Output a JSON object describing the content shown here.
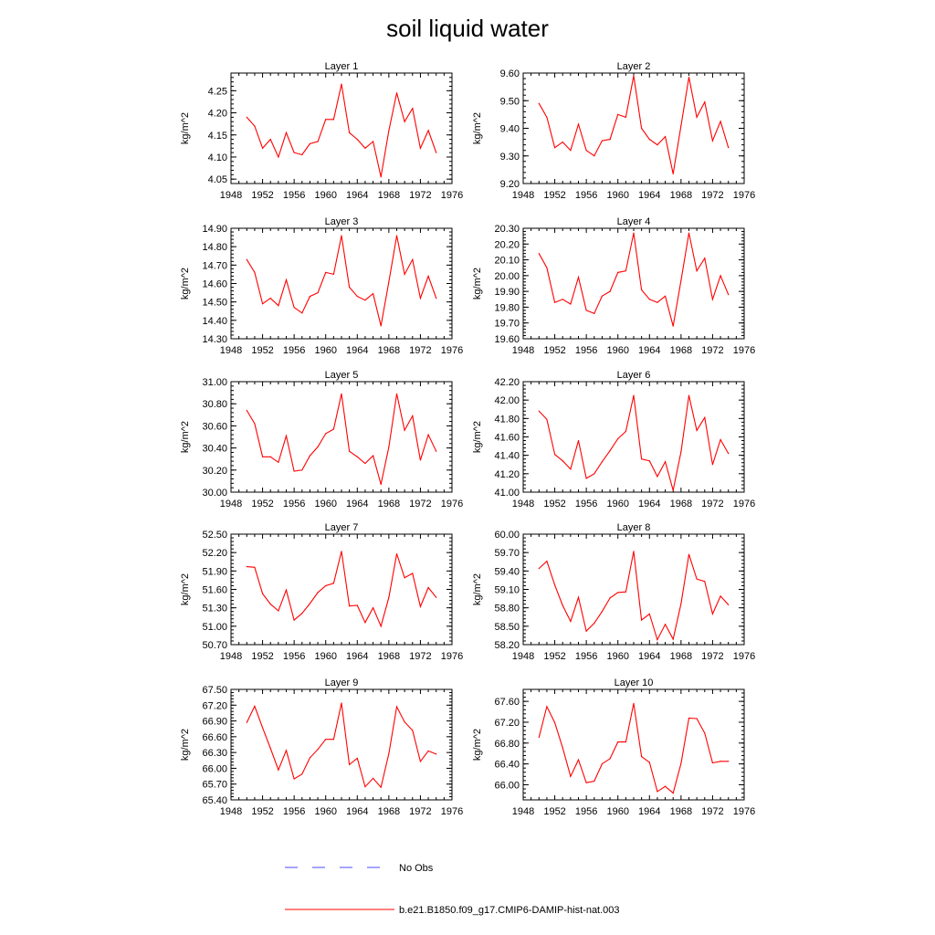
{
  "title": "soil liquid water",
  "colors": {
    "series": "#ff0000",
    "obs": "#4b4bff",
    "axis": "#000000"
  },
  "chart_data": [
    {
      "type": "line",
      "title": "Layer 1",
      "xlabel": "",
      "ylabel": "kg/m^2",
      "xlim": [
        1948,
        1976
      ],
      "ylim": [
        4.04,
        4.29
      ],
      "xticks": [
        1948,
        1952,
        1956,
        1960,
        1964,
        1968,
        1972,
        1976
      ],
      "yticks": [
        "4.05",
        "4.10",
        "4.15",
        "4.20",
        "4.25"
      ],
      "x": [
        1950,
        1951,
        1952,
        1953,
        1954,
        1955,
        1956,
        1957,
        1958,
        1959,
        1960,
        1961,
        1962,
        1963,
        1964,
        1965,
        1966,
        1967,
        1968,
        1969,
        1970,
        1971,
        1972,
        1973,
        1974
      ],
      "values": [
        4.19,
        4.17,
        4.12,
        4.14,
        4.1,
        4.155,
        4.11,
        4.105,
        4.13,
        4.135,
        4.185,
        4.185,
        4.265,
        4.155,
        4.14,
        4.12,
        4.135,
        4.055,
        4.16,
        4.245,
        4.18,
        4.21,
        4.12,
        4.16,
        4.11
      ]
    },
    {
      "type": "line",
      "title": "Layer 2",
      "xlabel": "",
      "ylabel": "kg/m^2",
      "xlim": [
        1948,
        1976
      ],
      "ylim": [
        9.2,
        9.6
      ],
      "xticks": [
        1948,
        1952,
        1956,
        1960,
        1964,
        1968,
        1972,
        1976
      ],
      "yticks": [
        "9.20",
        "9.30",
        "9.40",
        "9.50",
        "9.60"
      ],
      "x": [
        1950,
        1951,
        1952,
        1953,
        1954,
        1955,
        1956,
        1957,
        1958,
        1959,
        1960,
        1961,
        1962,
        1963,
        1964,
        1965,
        1966,
        1967,
        1968,
        1969,
        1970,
        1971,
        1972,
        1973,
        1974
      ],
      "values": [
        9.49,
        9.44,
        9.33,
        9.35,
        9.32,
        9.415,
        9.32,
        9.3,
        9.355,
        9.36,
        9.45,
        9.44,
        9.59,
        9.4,
        9.36,
        9.34,
        9.37,
        9.235,
        9.41,
        9.585,
        9.44,
        9.495,
        9.355,
        9.425,
        9.33
      ]
    },
    {
      "type": "line",
      "title": "Layer 3",
      "xlabel": "",
      "ylabel": "kg/m^2",
      "xlim": [
        1948,
        1976
      ],
      "ylim": [
        14.3,
        14.9
      ],
      "xticks": [
        1948,
        1952,
        1956,
        1960,
        1964,
        1968,
        1972,
        1976
      ],
      "yticks": [
        "14.30",
        "14.40",
        "14.50",
        "14.60",
        "14.70",
        "14.80",
        "14.90"
      ],
      "x": [
        1950,
        1951,
        1952,
        1953,
        1954,
        1955,
        1956,
        1957,
        1958,
        1959,
        1960,
        1961,
        1962,
        1963,
        1964,
        1965,
        1966,
        1967,
        1968,
        1969,
        1970,
        1971,
        1972,
        1973,
        1974
      ],
      "values": [
        14.73,
        14.66,
        14.49,
        14.52,
        14.48,
        14.62,
        14.47,
        14.44,
        14.53,
        14.55,
        14.66,
        14.65,
        14.86,
        14.58,
        14.53,
        14.51,
        14.545,
        14.37,
        14.61,
        14.86,
        14.65,
        14.73,
        14.52,
        14.64,
        14.52
      ]
    },
    {
      "type": "line",
      "title": "Layer 4",
      "xlabel": "",
      "ylabel": "kg/m^2",
      "xlim": [
        1948,
        1976
      ],
      "ylim": [
        19.6,
        20.3
      ],
      "xticks": [
        1948,
        1952,
        1956,
        1960,
        1964,
        1968,
        1972,
        1976
      ],
      "yticks": [
        "19.60",
        "19.70",
        "19.80",
        "19.90",
        "20.00",
        "20.10",
        "20.20",
        "20.30"
      ],
      "x": [
        1950,
        1951,
        1952,
        1953,
        1954,
        1955,
        1956,
        1957,
        1958,
        1959,
        1960,
        1961,
        1962,
        1963,
        1964,
        1965,
        1966,
        1967,
        1968,
        1969,
        1970,
        1971,
        1972,
        1973,
        1974
      ],
      "values": [
        20.14,
        20.05,
        19.83,
        19.85,
        19.82,
        19.99,
        19.78,
        19.76,
        19.87,
        19.9,
        20.02,
        20.03,
        20.27,
        19.91,
        19.85,
        19.83,
        19.87,
        19.68,
        19.97,
        20.27,
        20.03,
        20.11,
        19.85,
        20.0,
        19.88
      ]
    },
    {
      "type": "line",
      "title": "Layer 5",
      "xlabel": "",
      "ylabel": "kg/m^2",
      "xlim": [
        1948,
        1976
      ],
      "ylim": [
        30.0,
        31.0
      ],
      "xticks": [
        1948,
        1952,
        1956,
        1960,
        1964,
        1968,
        1972,
        1976
      ],
      "yticks": [
        "30.00",
        "30.20",
        "30.40",
        "30.60",
        "30.80",
        "31.00"
      ],
      "x": [
        1950,
        1951,
        1952,
        1953,
        1954,
        1955,
        1956,
        1957,
        1958,
        1959,
        1960,
        1961,
        1962,
        1963,
        1964,
        1965,
        1966,
        1967,
        1968,
        1969,
        1970,
        1971,
        1972,
        1973,
        1974
      ],
      "values": [
        30.74,
        30.62,
        30.32,
        30.32,
        30.27,
        30.51,
        30.19,
        30.2,
        30.33,
        30.41,
        30.53,
        30.57,
        30.89,
        30.37,
        30.32,
        30.26,
        30.33,
        30.07,
        30.41,
        30.89,
        30.56,
        30.69,
        30.29,
        30.52,
        30.37
      ]
    },
    {
      "type": "line",
      "title": "Layer 6",
      "xlabel": "",
      "ylabel": "kg/m^2",
      "xlim": [
        1948,
        1976
      ],
      "ylim": [
        41.0,
        42.2
      ],
      "xticks": [
        1948,
        1952,
        1956,
        1960,
        1964,
        1968,
        1972,
        1976
      ],
      "yticks": [
        "41.00",
        "41.20",
        "41.40",
        "41.60",
        "41.80",
        "42.00",
        "42.20"
      ],
      "x": [
        1950,
        1951,
        1952,
        1953,
        1954,
        1955,
        1956,
        1957,
        1958,
        1959,
        1960,
        1961,
        1962,
        1963,
        1964,
        1965,
        1966,
        1967,
        1968,
        1969,
        1970,
        1971,
        1972,
        1973,
        1974
      ],
      "values": [
        41.88,
        41.79,
        41.41,
        41.34,
        41.25,
        41.56,
        41.15,
        41.2,
        41.33,
        41.45,
        41.58,
        41.66,
        42.05,
        41.36,
        41.34,
        41.17,
        41.33,
        41.02,
        41.44,
        42.05,
        41.67,
        41.81,
        41.3,
        41.57,
        41.42
      ]
    },
    {
      "type": "line",
      "title": "Layer 7",
      "xlabel": "",
      "ylabel": "kg/m^2",
      "xlim": [
        1948,
        1976
      ],
      "ylim": [
        50.7,
        52.5
      ],
      "xticks": [
        1948,
        1952,
        1956,
        1960,
        1964,
        1968,
        1972,
        1976
      ],
      "yticks": [
        "50.70",
        "51.00",
        "51.30",
        "51.60",
        "51.90",
        "52.20",
        "52.50"
      ],
      "x": [
        1950,
        1951,
        1952,
        1953,
        1954,
        1955,
        1956,
        1957,
        1958,
        1959,
        1960,
        1961,
        1962,
        1963,
        1964,
        1965,
        1966,
        1967,
        1968,
        1969,
        1970,
        1971,
        1972,
        1973,
        1974
      ],
      "values": [
        51.97,
        51.96,
        51.53,
        51.36,
        51.25,
        51.59,
        51.1,
        51.21,
        51.37,
        51.55,
        51.66,
        51.7,
        52.22,
        51.33,
        51.34,
        51.06,
        51.3,
        51.0,
        51.47,
        52.18,
        51.79,
        51.86,
        51.32,
        51.63,
        51.47
      ]
    },
    {
      "type": "line",
      "title": "Layer 8",
      "xlabel": "",
      "ylabel": "kg/m^2",
      "xlim": [
        1948,
        1976
      ],
      "ylim": [
        58.2,
        60.0
      ],
      "xticks": [
        1948,
        1952,
        1956,
        1960,
        1964,
        1968,
        1972,
        1976
      ],
      "yticks": [
        "58.20",
        "58.50",
        "58.80",
        "59.10",
        "59.40",
        "59.70",
        "60.00"
      ],
      "x": [
        1950,
        1951,
        1952,
        1953,
        1954,
        1955,
        1956,
        1957,
        1958,
        1959,
        1960,
        1961,
        1962,
        1963,
        1964,
        1965,
        1966,
        1967,
        1968,
        1969,
        1970,
        1971,
        1972,
        1973,
        1974
      ],
      "values": [
        59.44,
        59.56,
        59.17,
        58.84,
        58.58,
        58.97,
        58.42,
        58.55,
        58.74,
        58.96,
        59.05,
        59.06,
        59.72,
        58.6,
        58.7,
        58.28,
        58.53,
        58.29,
        58.87,
        59.67,
        59.27,
        59.23,
        58.7,
        58.99,
        58.85
      ]
    },
    {
      "type": "line",
      "title": "Layer 9",
      "xlabel": "",
      "ylabel": "kg/m^2",
      "xlim": [
        1948,
        1976
      ],
      "ylim": [
        65.4,
        67.5
      ],
      "xticks": [
        1948,
        1952,
        1956,
        1960,
        1964,
        1968,
        1972,
        1976
      ],
      "yticks": [
        "65.40",
        "65.70",
        "66.00",
        "66.30",
        "66.60",
        "66.90",
        "67.20",
        "67.50"
      ],
      "x": [
        1950,
        1951,
        1952,
        1953,
        1954,
        1955,
        1956,
        1957,
        1958,
        1959,
        1960,
        1961,
        1962,
        1963,
        1964,
        1965,
        1966,
        1967,
        1968,
        1969,
        1970,
        1971,
        1972,
        1973,
        1974
      ],
      "values": [
        66.87,
        67.18,
        66.77,
        66.38,
        65.97,
        66.34,
        65.8,
        65.89,
        66.2,
        66.36,
        66.55,
        66.55,
        67.24,
        66.07,
        66.19,
        65.65,
        65.81,
        65.64,
        66.28,
        67.17,
        66.88,
        66.72,
        66.13,
        66.33,
        66.27
      ]
    },
    {
      "type": "line",
      "title": "Layer 10",
      "xlabel": "",
      "ylabel": "kg/m^2",
      "xlim": [
        1948,
        1976
      ],
      "ylim": [
        65.71,
        67.83
      ],
      "xticks": [
        1948,
        1952,
        1956,
        1960,
        1964,
        1968,
        1972,
        1976
      ],
      "yticks": [
        "66.00",
        "66.40",
        "66.80",
        "67.20",
        "67.60"
      ],
      "x": [
        1950,
        1951,
        1952,
        1953,
        1954,
        1955,
        1956,
        1957,
        1958,
        1959,
        1960,
        1961,
        1962,
        1963,
        1964,
        1965,
        1966,
        1967,
        1968,
        1969,
        1970,
        1971,
        1972,
        1973,
        1974
      ],
      "values": [
        66.91,
        67.5,
        67.19,
        66.71,
        66.16,
        66.48,
        66.04,
        66.07,
        66.4,
        66.5,
        66.82,
        66.82,
        67.56,
        66.54,
        66.43,
        65.87,
        65.97,
        65.84,
        66.41,
        67.28,
        67.27,
        66.99,
        66.42,
        66.45,
        66.45
      ]
    }
  ],
  "legend": {
    "placement": "bottom-center",
    "items": [
      {
        "label": "No Obs",
        "style": "dashed",
        "color": "#4b4bff"
      },
      {
        "label": "b.e21.B1850.f09_g17.CMIP6-DAMIP-hist-nat.003",
        "style": "solid",
        "color": "#ff0000"
      }
    ]
  }
}
